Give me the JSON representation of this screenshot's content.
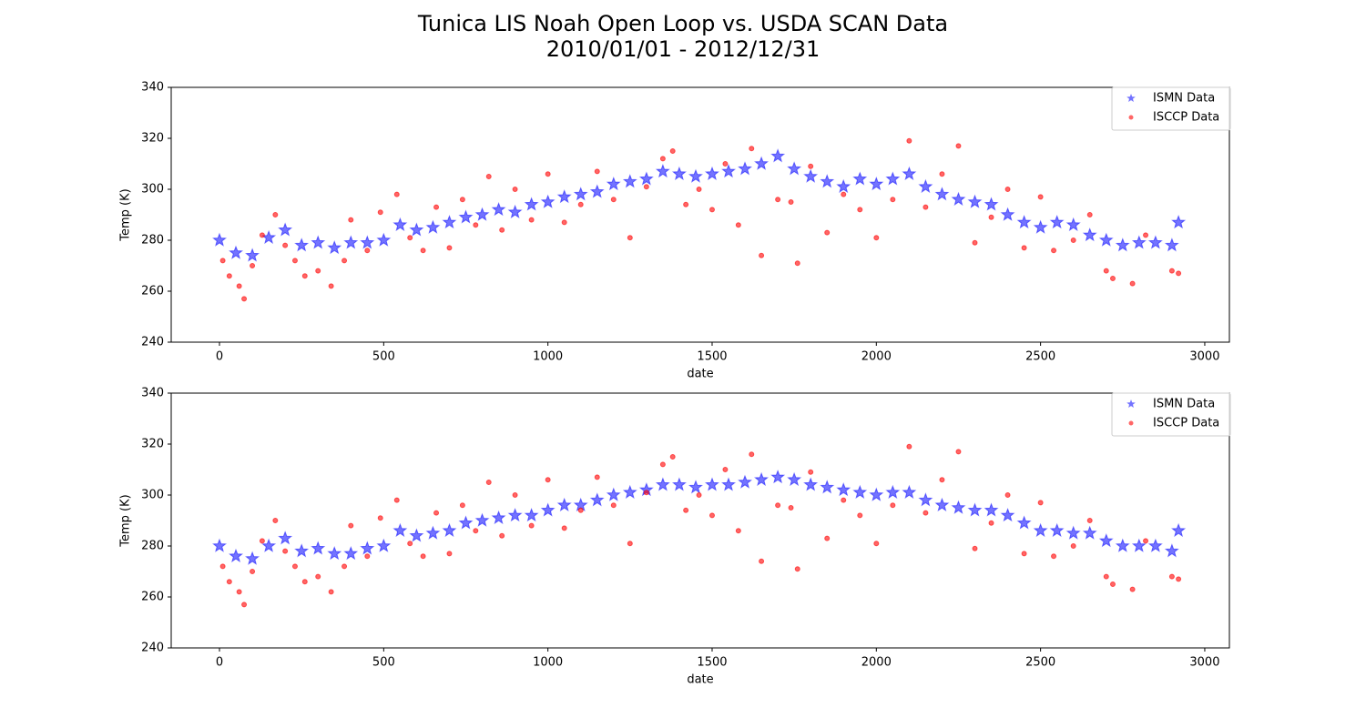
{
  "title": "Tunica LIS Noah Open Loop vs. USDA SCAN Data",
  "subtitle": "2010/01/01 - 2012/12/31",
  "chart_data": [
    {
      "type": "scatter",
      "xlabel": "date",
      "ylabel": "Temp (K)",
      "xlim": [
        -147,
        3075
      ],
      "ylim": [
        240,
        340
      ],
      "xticks": [
        0,
        500,
        1000,
        1500,
        2000,
        2500,
        3000
      ],
      "yticks": [
        240,
        260,
        280,
        300,
        320,
        340
      ],
      "legend": "upper right",
      "series": [
        {
          "name": "ISMN Data",
          "color": "#0000ff",
          "marker": "star",
          "x": [
            0,
            50,
            100,
            150,
            200,
            250,
            300,
            350,
            400,
            450,
            500,
            550,
            600,
            650,
            700,
            750,
            800,
            850,
            900,
            950,
            1000,
            1050,
            1100,
            1150,
            1200,
            1250,
            1300,
            1350,
            1400,
            1450,
            1500,
            1550,
            1600,
            1650,
            1700,
            1750,
            1800,
            1850,
            1900,
            1950,
            2000,
            2050,
            2100,
            2150,
            2200,
            2250,
            2300,
            2350,
            2400,
            2450,
            2500,
            2550,
            2600,
            2650,
            2700,
            2750,
            2800,
            2850,
            2900,
            2920
          ],
          "values": [
            280,
            275,
            274,
            281,
            284,
            278,
            279,
            277,
            279,
            279,
            280,
            286,
            284,
            285,
            287,
            289,
            290,
            292,
            291,
            294,
            295,
            297,
            298,
            299,
            302,
            303,
            304,
            307,
            306,
            305,
            306,
            307,
            308,
            310,
            313,
            308,
            305,
            303,
            301,
            304,
            302,
            304,
            306,
            301,
            298,
            296,
            295,
            294,
            290,
            287,
            285,
            287,
            286,
            282,
            280,
            278,
            279,
            279,
            278,
            287
          ]
        },
        {
          "name": "ISCCP Data",
          "color": "#ff0000",
          "marker": "circle",
          "x": [
            10,
            30,
            60,
            75,
            100,
            130,
            170,
            200,
            230,
            260,
            300,
            340,
            380,
            400,
            450,
            490,
            540,
            580,
            620,
            660,
            700,
            740,
            780,
            820,
            860,
            900,
            950,
            1000,
            1050,
            1100,
            1150,
            1200,
            1250,
            1300,
            1350,
            1380,
            1420,
            1460,
            1500,
            1540,
            1580,
            1620,
            1650,
            1700,
            1740,
            1760,
            1800,
            1850,
            1900,
            1950,
            2000,
            2050,
            2100,
            2150,
            2200,
            2250,
            2300,
            2350,
            2400,
            2450,
            2500,
            2540,
            2600,
            2650,
            2700,
            2720,
            2780,
            2820,
            2900,
            2920
          ],
          "values": [
            272,
            266,
            262,
            257,
            270,
            282,
            290,
            278,
            272,
            266,
            268,
            262,
            272,
            288,
            276,
            291,
            298,
            281,
            276,
            293,
            277,
            296,
            286,
            305,
            284,
            300,
            288,
            306,
            287,
            294,
            307,
            296,
            281,
            301,
            312,
            315,
            294,
            300,
            292,
            310,
            286,
            316,
            274,
            296,
            295,
            271,
            309,
            283,
            298,
            292,
            281,
            296,
            319,
            293,
            306,
            317,
            279,
            289,
            300,
            277,
            297,
            276,
            280,
            290,
            268,
            265,
            263,
            282,
            268,
            267
          ]
        }
      ]
    },
    {
      "type": "scatter",
      "xlabel": "date",
      "ylabel": "Temp (K)",
      "xlim": [
        -147,
        3075
      ],
      "ylim": [
        240,
        340
      ],
      "xticks": [
        0,
        500,
        1000,
        1500,
        2000,
        2500,
        3000
      ],
      "yticks": [
        240,
        260,
        280,
        300,
        320,
        340
      ],
      "legend": "upper right",
      "series": [
        {
          "name": "ISMN Data",
          "color": "#0000ff",
          "marker": "star",
          "x": [
            0,
            50,
            100,
            150,
            200,
            250,
            300,
            350,
            400,
            450,
            500,
            550,
            600,
            650,
            700,
            750,
            800,
            850,
            900,
            950,
            1000,
            1050,
            1100,
            1150,
            1200,
            1250,
            1300,
            1350,
            1400,
            1450,
            1500,
            1550,
            1600,
            1650,
            1700,
            1750,
            1800,
            1850,
            1900,
            1950,
            2000,
            2050,
            2100,
            2150,
            2200,
            2250,
            2300,
            2350,
            2400,
            2450,
            2500,
            2550,
            2600,
            2650,
            2700,
            2750,
            2800,
            2850,
            2900,
            2920
          ],
          "values": [
            280,
            276,
            275,
            280,
            283,
            278,
            279,
            277,
            277,
            279,
            280,
            286,
            284,
            285,
            286,
            289,
            290,
            291,
            292,
            292,
            294,
            296,
            296,
            298,
            300,
            301,
            302,
            304,
            304,
            303,
            304,
            304,
            305,
            306,
            307,
            306,
            304,
            303,
            302,
            301,
            300,
            301,
            301,
            298,
            296,
            295,
            294,
            294,
            292,
            289,
            286,
            286,
            285,
            285,
            282,
            280,
            280,
            280,
            278,
            286
          ]
        },
        {
          "name": "ISCCP Data",
          "color": "#ff0000",
          "marker": "circle",
          "x": [
            10,
            30,
            60,
            75,
            100,
            130,
            170,
            200,
            230,
            260,
            300,
            340,
            380,
            400,
            450,
            490,
            540,
            580,
            620,
            660,
            700,
            740,
            780,
            820,
            860,
            900,
            950,
            1000,
            1050,
            1100,
            1150,
            1200,
            1250,
            1300,
            1350,
            1380,
            1420,
            1460,
            1500,
            1540,
            1580,
            1620,
            1650,
            1700,
            1740,
            1760,
            1800,
            1850,
            1900,
            1950,
            2000,
            2050,
            2100,
            2150,
            2200,
            2250,
            2300,
            2350,
            2400,
            2450,
            2500,
            2540,
            2600,
            2650,
            2700,
            2720,
            2780,
            2820,
            2900,
            2920
          ],
          "values": [
            272,
            266,
            262,
            257,
            270,
            282,
            290,
            278,
            272,
            266,
            268,
            262,
            272,
            288,
            276,
            291,
            298,
            281,
            276,
            293,
            277,
            296,
            286,
            305,
            284,
            300,
            288,
            306,
            287,
            294,
            307,
            296,
            281,
            301,
            312,
            315,
            294,
            300,
            292,
            310,
            286,
            316,
            274,
            296,
            295,
            271,
            309,
            283,
            298,
            292,
            281,
            296,
            319,
            293,
            306,
            317,
            279,
            289,
            300,
            277,
            297,
            276,
            280,
            290,
            268,
            265,
            263,
            282,
            268,
            267
          ]
        }
      ]
    }
  ]
}
